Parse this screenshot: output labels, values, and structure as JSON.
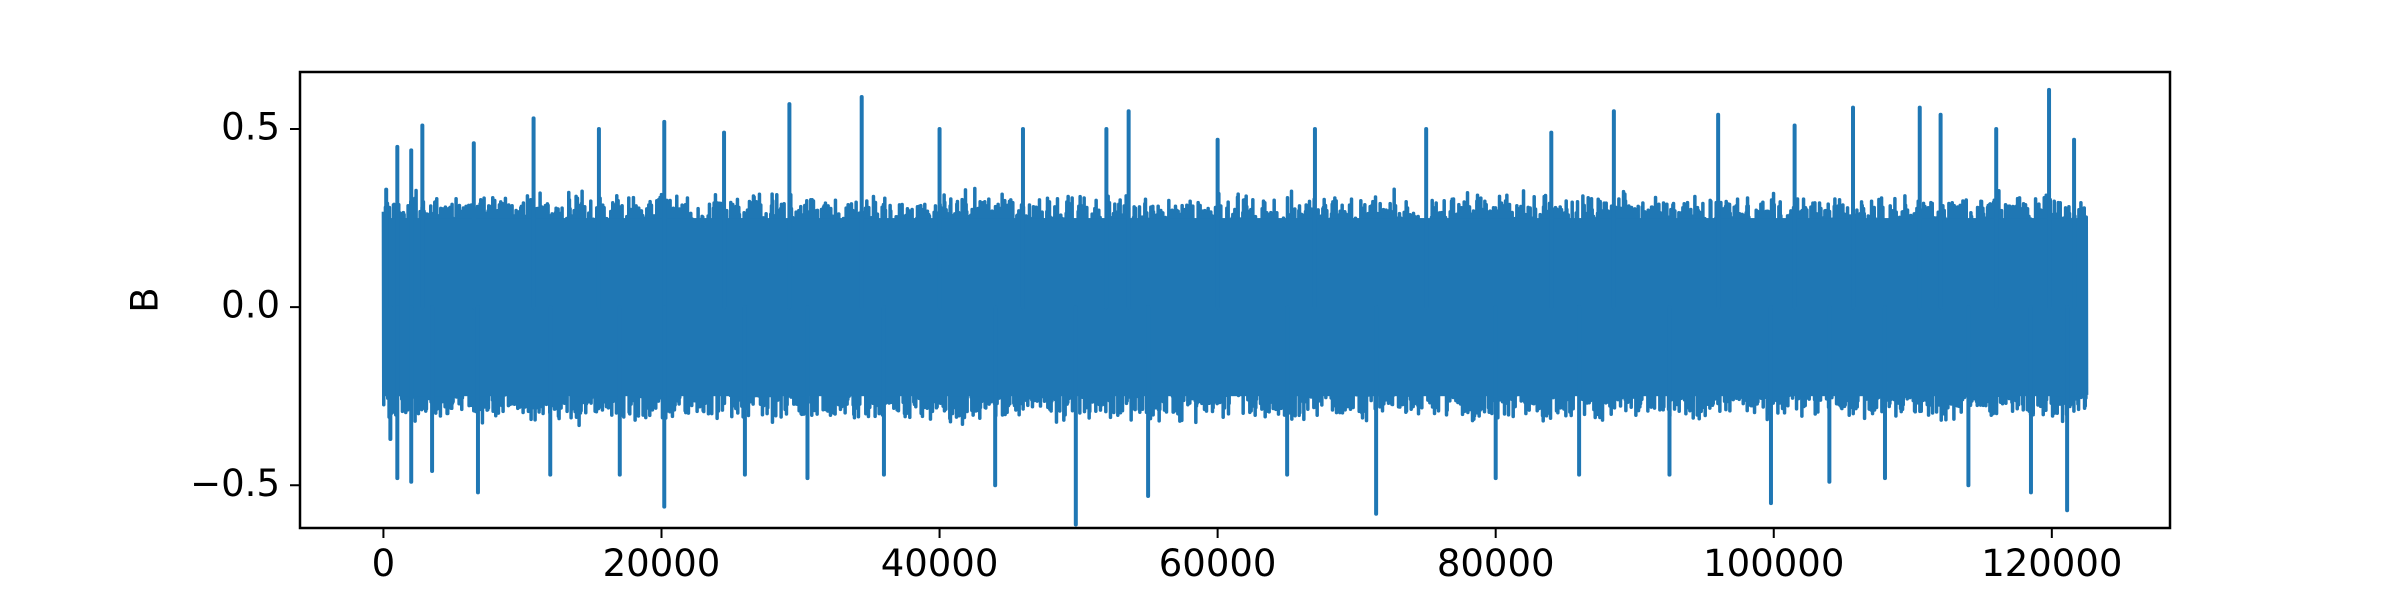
{
  "chart_data": {
    "type": "line",
    "title": "",
    "xlabel": "",
    "ylabel": "B",
    "xlim": [
      -6000,
      128500
    ],
    "ylim": [
      -0.62,
      0.66
    ],
    "x_ticks": [
      {
        "value": 0,
        "label": "0"
      },
      {
        "value": 20000,
        "label": "20000"
      },
      {
        "value": 40000,
        "label": "40000"
      },
      {
        "value": 60000,
        "label": "60000"
      },
      {
        "value": 80000,
        "label": "80000"
      },
      {
        "value": 100000,
        "label": "100000"
      },
      {
        "value": 120000,
        "label": "120000"
      }
    ],
    "y_ticks": [
      {
        "value": -0.5,
        "label": "−0.5"
      },
      {
        "value": 0.0,
        "label": "0.0"
      },
      {
        "value": 0.5,
        "label": "0.5"
      }
    ],
    "grid": false,
    "series": [
      {
        "color": "#1f77b4",
        "x_range": [
          0,
          122500
        ],
        "peaks": [
          {
            "x": 200,
            "y": 0.33
          },
          {
            "x": 500,
            "y": -0.37
          },
          {
            "x": 1000,
            "y": 0.45
          },
          {
            "x": 1000,
            "y": -0.48
          },
          {
            "x": 2000,
            "y": 0.44
          },
          {
            "x": 2000,
            "y": -0.49
          },
          {
            "x": 2800,
            "y": 0.51
          },
          {
            "x": 3500,
            "y": -0.46
          },
          {
            "x": 6500,
            "y": 0.46
          },
          {
            "x": 6800,
            "y": -0.52
          },
          {
            "x": 10800,
            "y": 0.53
          },
          {
            "x": 12000,
            "y": -0.47
          },
          {
            "x": 15500,
            "y": 0.5
          },
          {
            "x": 17000,
            "y": -0.47
          },
          {
            "x": 20200,
            "y": 0.52
          },
          {
            "x": 20200,
            "y": -0.56
          },
          {
            "x": 24500,
            "y": 0.49
          },
          {
            "x": 26000,
            "y": -0.47
          },
          {
            "x": 29200,
            "y": 0.57
          },
          {
            "x": 30500,
            "y": -0.48
          },
          {
            "x": 34400,
            "y": 0.59
          },
          {
            "x": 36000,
            "y": -0.47
          },
          {
            "x": 40000,
            "y": 0.5
          },
          {
            "x": 44000,
            "y": -0.5
          },
          {
            "x": 46000,
            "y": 0.5
          },
          {
            "x": 49800,
            "y": -0.61
          },
          {
            "x": 52000,
            "y": 0.5
          },
          {
            "x": 53600,
            "y": 0.55
          },
          {
            "x": 55000,
            "y": -0.53
          },
          {
            "x": 60000,
            "y": 0.47
          },
          {
            "x": 65000,
            "y": -0.47
          },
          {
            "x": 67000,
            "y": 0.5
          },
          {
            "x": 71400,
            "y": -0.58
          },
          {
            "x": 75000,
            "y": 0.5
          },
          {
            "x": 80000,
            "y": -0.48
          },
          {
            "x": 84000,
            "y": 0.49
          },
          {
            "x": 86000,
            "y": -0.47
          },
          {
            "x": 88500,
            "y": 0.55
          },
          {
            "x": 92500,
            "y": -0.47
          },
          {
            "x": 96000,
            "y": 0.54
          },
          {
            "x": 99800,
            "y": -0.55
          },
          {
            "x": 101500,
            "y": 0.51
          },
          {
            "x": 104000,
            "y": -0.49
          },
          {
            "x": 105700,
            "y": 0.56
          },
          {
            "x": 108000,
            "y": -0.48
          },
          {
            "x": 110500,
            "y": 0.56
          },
          {
            "x": 112000,
            "y": 0.54
          },
          {
            "x": 114000,
            "y": -0.5
          },
          {
            "x": 116000,
            "y": 0.5
          },
          {
            "x": 118500,
            "y": -0.52
          },
          {
            "x": 119800,
            "y": 0.61
          },
          {
            "x": 121100,
            "y": -0.57
          },
          {
            "x": 121600,
            "y": 0.47
          }
        ]
      }
    ]
  }
}
